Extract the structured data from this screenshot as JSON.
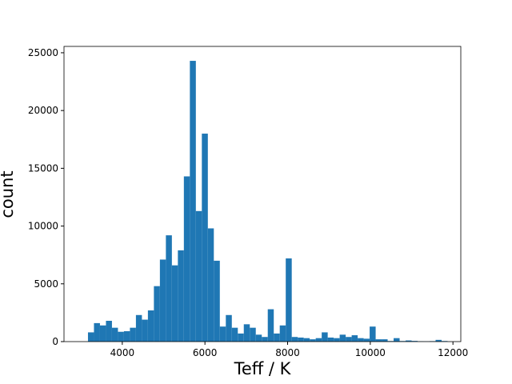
{
  "chart_data": {
    "type": "histogram",
    "xlabel": "Teff / K",
    "ylabel": "count",
    "color": "#1f77b4",
    "bins": [
      3170,
      3315,
      3460,
      3605,
      3750,
      3895,
      4040,
      4185,
      4330,
      4475,
      4620,
      4765,
      4910,
      5055,
      5200,
      5345,
      5490,
      5635,
      5780,
      5925,
      6070,
      6215,
      6360,
      6505,
      6650,
      6795,
      6940,
      7085,
      7230,
      7375,
      7520,
      7665,
      7810,
      7955,
      8100,
      8245,
      8390,
      8535,
      8680,
      8825,
      8970,
      9115,
      9260,
      9405,
      9550,
      9695,
      9840,
      9985,
      10130,
      10275,
      10420,
      10565,
      10710,
      10855,
      11000,
      11145,
      11290,
      11435,
      11580,
      11725,
      11870
    ],
    "values": [
      800,
      1600,
      1400,
      1800,
      1200,
      850,
      900,
      1200,
      2300,
      1900,
      2700,
      4800,
      7100,
      9200,
      6600,
      7900,
      14300,
      24300,
      11300,
      18000,
      9800,
      7000,
      1300,
      2300,
      1200,
      700,
      1500,
      1200,
      600,
      400,
      2800,
      700,
      1400,
      7200,
      400,
      350,
      300,
      200,
      300,
      800,
      350,
      300,
      600,
      400,
      550,
      300,
      250,
      1300,
      200,
      200,
      50,
      300,
      50,
      100,
      60,
      30,
      20,
      40,
      150,
      50
    ],
    "xlim": [
      2590,
      12190
    ],
    "ylim": [
      0,
      25550
    ],
    "xticks": [
      4000,
      6000,
      8000,
      10000,
      12000
    ],
    "yticks": [
      0,
      5000,
      10000,
      15000,
      20000,
      25000
    ],
    "grid": false
  }
}
